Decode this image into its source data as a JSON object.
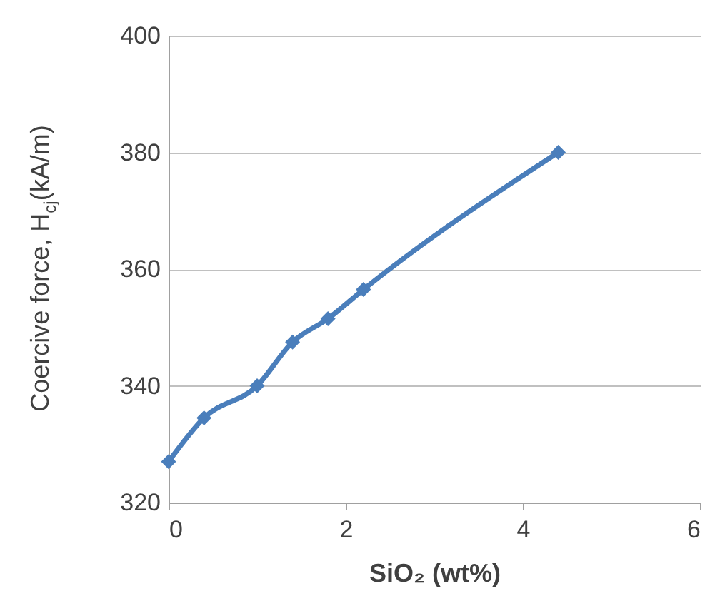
{
  "chart_data": {
    "type": "line",
    "xlabel": "SiO₂ (wt%)",
    "ylabel": "Coercive force, H$_{cj}$(kA/m)",
    "x": [
      0,
      0.4,
      1.0,
      1.4,
      1.8,
      2.2,
      4.4
    ],
    "series": [
      {
        "color": "#4a7ebb",
        "values": [
          327,
          334.5,
          340,
          347.5,
          351.5,
          356.5,
          380
        ]
      }
    ],
    "xlim": [
      0,
      6
    ],
    "xticks": [
      0,
      2,
      4,
      6
    ],
    "ylim": [
      320,
      400
    ],
    "yticks": [
      320,
      340,
      360,
      380,
      400
    ],
    "grid": "y",
    "marker": "diamond",
    "line_style": "solid"
  }
}
